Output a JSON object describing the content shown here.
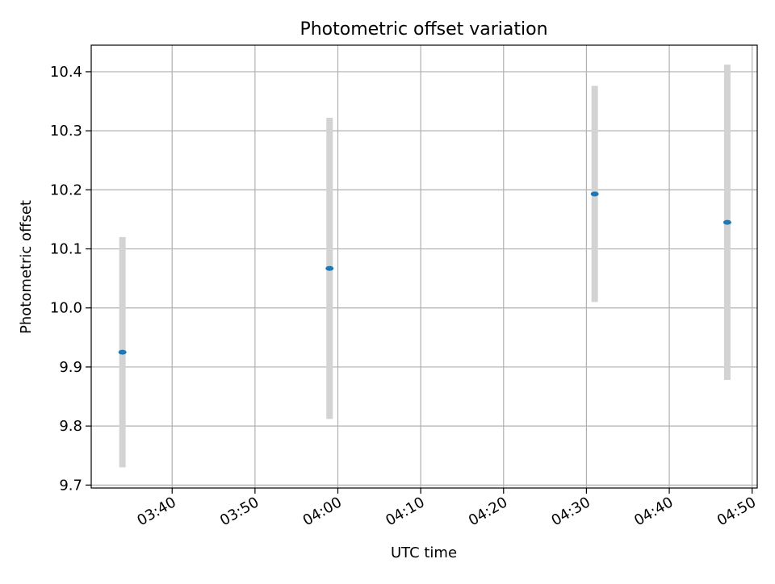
{
  "chart_data": {
    "type": "scatter",
    "title": "Photometric offset variation",
    "xlabel": "UTC time",
    "ylabel": "Photometric offset",
    "x_ticks": [
      "03:40",
      "03:50",
      "04:00",
      "04:10",
      "04:20",
      "04:30",
      "04:40",
      "04:50"
    ],
    "y_ticks": [
      "9.7",
      "9.8",
      "9.9",
      "10.0",
      "10.1",
      "10.2",
      "10.3",
      "10.4"
    ],
    "xlim": [
      "03:30:14",
      "04:50:37"
    ],
    "ylim": [
      9.695,
      10.445
    ],
    "grid": true,
    "series": [
      {
        "points": [
          {
            "x": "03:34:00",
            "y": 9.925,
            "err_low": 9.73,
            "err_high": 10.12
          },
          {
            "x": "03:59:00",
            "y": 10.067,
            "err_low": 9.812,
            "err_high": 10.322
          },
          {
            "x": "04:31:00",
            "y": 10.193,
            "err_low": 10.01,
            "err_high": 10.376
          },
          {
            "x": "04:47:00",
            "y": 10.145,
            "err_low": 9.878,
            "err_high": 10.412
          }
        ],
        "color": "#1f77b4",
        "errorbar_color": "#d3d3d3"
      }
    ]
  }
}
